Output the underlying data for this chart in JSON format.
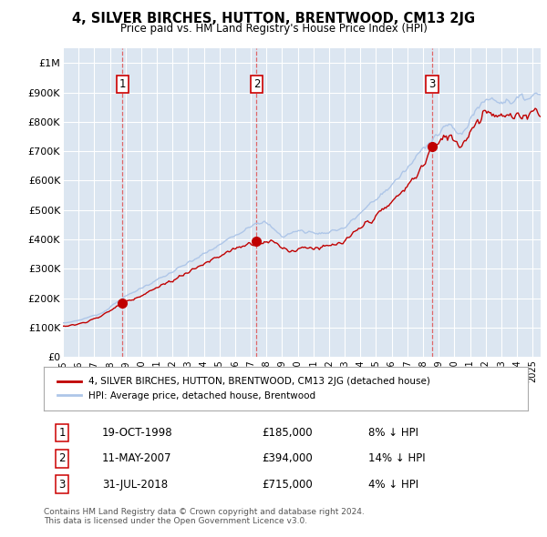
{
  "title": "4, SILVER BIRCHES, HUTTON, BRENTWOOD, CM13 2JG",
  "subtitle": "Price paid vs. HM Land Registry's House Price Index (HPI)",
  "ylabel_ticks": [
    "£0",
    "£100K",
    "£200K",
    "£300K",
    "£400K",
    "£500K",
    "£600K",
    "£700K",
    "£800K",
    "£900K",
    "£1M"
  ],
  "ytick_values": [
    0,
    100000,
    200000,
    300000,
    400000,
    500000,
    600000,
    700000,
    800000,
    900000,
    1000000
  ],
  "ylim": [
    0,
    1050000
  ],
  "xlim_start": 1995.0,
  "xlim_end": 2025.5,
  "background_color": "#dce6f1",
  "plot_bg_color": "#dce6f1",
  "grid_color": "#ffffff",
  "hpi_color": "#aec6e8",
  "price_color": "#c00000",
  "sale_marker_color": "#c00000",
  "sale_dates": [
    1998.8,
    2007.37,
    2018.58
  ],
  "sale_prices": [
    185000,
    394000,
    715000
  ],
  "sale_labels": [
    "1",
    "2",
    "3"
  ],
  "vline_color": "#e05050",
  "legend_label_price": "4, SILVER BIRCHES, HUTTON, BRENTWOOD, CM13 2JG (detached house)",
  "legend_label_hpi": "HPI: Average price, detached house, Brentwood",
  "table_rows": [
    {
      "label": "1",
      "date": "19-OCT-1998",
      "price": "£185,000",
      "hpi": "8% ↓ HPI"
    },
    {
      "label": "2",
      "date": "11-MAY-2007",
      "price": "£394,000",
      "hpi": "14% ↓ HPI"
    },
    {
      "label": "3",
      "date": "31-JUL-2018",
      "price": "£715,000",
      "hpi": "4% ↓ HPI"
    }
  ],
  "footer": "Contains HM Land Registry data © Crown copyright and database right 2024.\nThis data is licensed under the Open Government Licence v3.0."
}
